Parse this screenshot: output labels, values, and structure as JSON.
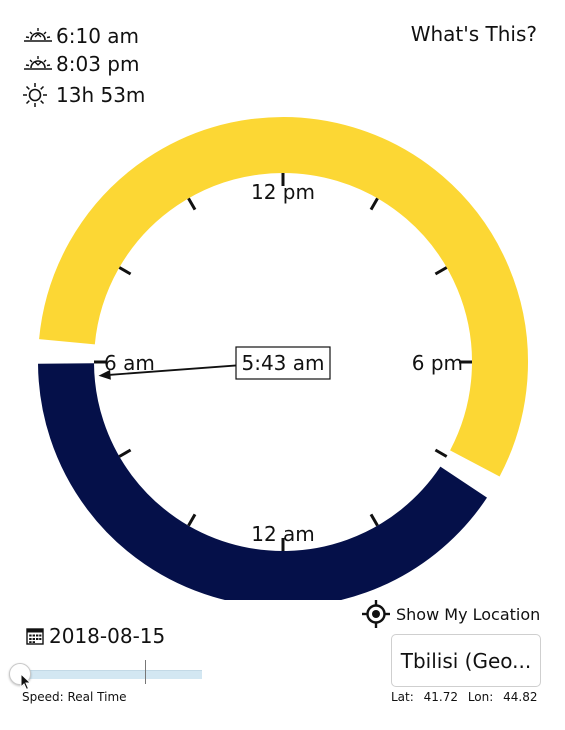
{
  "sun": {
    "sunrise": "6:10 am",
    "sunset": "8:03 pm",
    "day_length": "13h 53m"
  },
  "header": {
    "whats_this": "What's This?"
  },
  "clock": {
    "current_time": "5:43 am",
    "labels": {
      "top": "12 pm",
      "left": "6 am",
      "right": "6 pm",
      "bottom": "12 am"
    },
    "sunrise_fraction": 0.2569,
    "sunset_fraction": 0.8354,
    "current_fraction": 0.2382,
    "day_color": "#fcd734",
    "night_color": "#051049"
  },
  "location": {
    "show_my_location": "Show My Location",
    "name": "Tbilisi (Geo...",
    "lat_label": "Lat:",
    "lat": "41.72",
    "lon_label": "Lon:",
    "lon": "44.82"
  },
  "date": {
    "value": "2018-08-15"
  },
  "speed": {
    "label": "Speed: Real Time"
  }
}
